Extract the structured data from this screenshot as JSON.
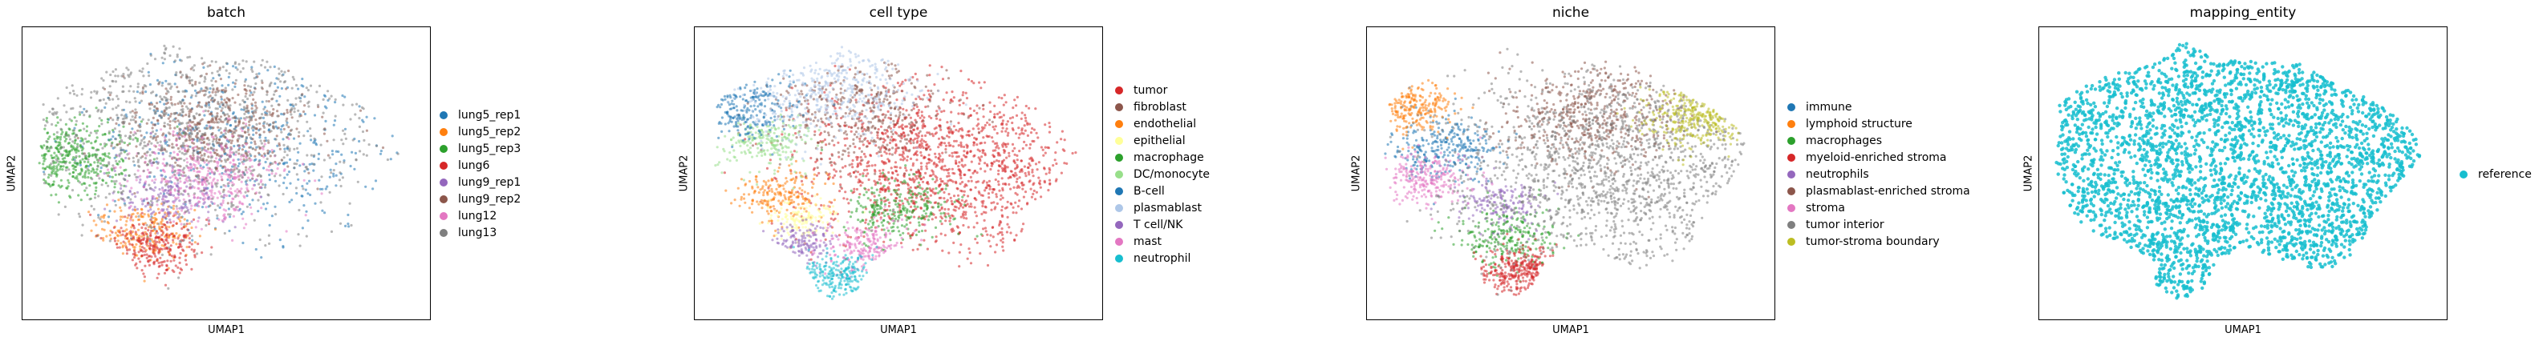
{
  "chart_data": [
    {
      "type": "scatter",
      "title": "batch",
      "xlabel": "UMAP1",
      "ylabel": "UMAP2",
      "grid": false,
      "legend_position": "right",
      "series": [
        {
          "name": "lung5_rep1",
          "color": "#1f77b4"
        },
        {
          "name": "lung5_rep2",
          "color": "#ff7f0e"
        },
        {
          "name": "lung5_rep3",
          "color": "#2ca02c"
        },
        {
          "name": "lung6",
          "color": "#d62728"
        },
        {
          "name": "lung9_rep1",
          "color": "#9467bd"
        },
        {
          "name": "lung9_rep2",
          "color": "#8c564b"
        },
        {
          "name": "lung12",
          "color": "#e377c2"
        },
        {
          "name": "lung13",
          "color": "#7f7f7f"
        }
      ]
    },
    {
      "type": "scatter",
      "title": "cell type",
      "xlabel": "UMAP1",
      "ylabel": "UMAP2",
      "grid": false,
      "legend_position": "right",
      "series": [
        {
          "name": "tumor",
          "color": "#d62728"
        },
        {
          "name": "fibroblast",
          "color": "#8c564b"
        },
        {
          "name": "endothelial",
          "color": "#ff7f0e"
        },
        {
          "name": "epithelial",
          "color": "#ffff99"
        },
        {
          "name": "macrophage",
          "color": "#2ca02c"
        },
        {
          "name": "DC/monocyte",
          "color": "#98df8a"
        },
        {
          "name": "B-cell",
          "color": "#1f77b4"
        },
        {
          "name": "plasmablast",
          "color": "#aec7e8"
        },
        {
          "name": "T cell/NK",
          "color": "#9467bd"
        },
        {
          "name": "mast",
          "color": "#e377c2"
        },
        {
          "name": "neutrophil",
          "color": "#17becf"
        }
      ]
    },
    {
      "type": "scatter",
      "title": "niche",
      "xlabel": "UMAP1",
      "ylabel": "UMAP2",
      "grid": false,
      "legend_position": "right",
      "series": [
        {
          "name": "immune",
          "color": "#1f77b4"
        },
        {
          "name": "lymphoid structure",
          "color": "#ff7f0e"
        },
        {
          "name": "macrophages",
          "color": "#2ca02c"
        },
        {
          "name": "myeloid-enriched stroma",
          "color": "#d62728"
        },
        {
          "name": "neutrophils",
          "color": "#9467bd"
        },
        {
          "name": "plasmablast-enriched stroma",
          "color": "#8c564b"
        },
        {
          "name": "stroma",
          "color": "#e377c2"
        },
        {
          "name": "tumor interior",
          "color": "#7f7f7f"
        },
        {
          "name": "tumor-stroma boundary",
          "color": "#bcbd22"
        }
      ]
    },
    {
      "type": "scatter",
      "title": "mapping_entity",
      "xlabel": "UMAP1",
      "ylabel": "UMAP2",
      "grid": false,
      "legend_position": "right",
      "series": [
        {
          "name": "reference",
          "color": "#17becf"
        }
      ]
    }
  ]
}
